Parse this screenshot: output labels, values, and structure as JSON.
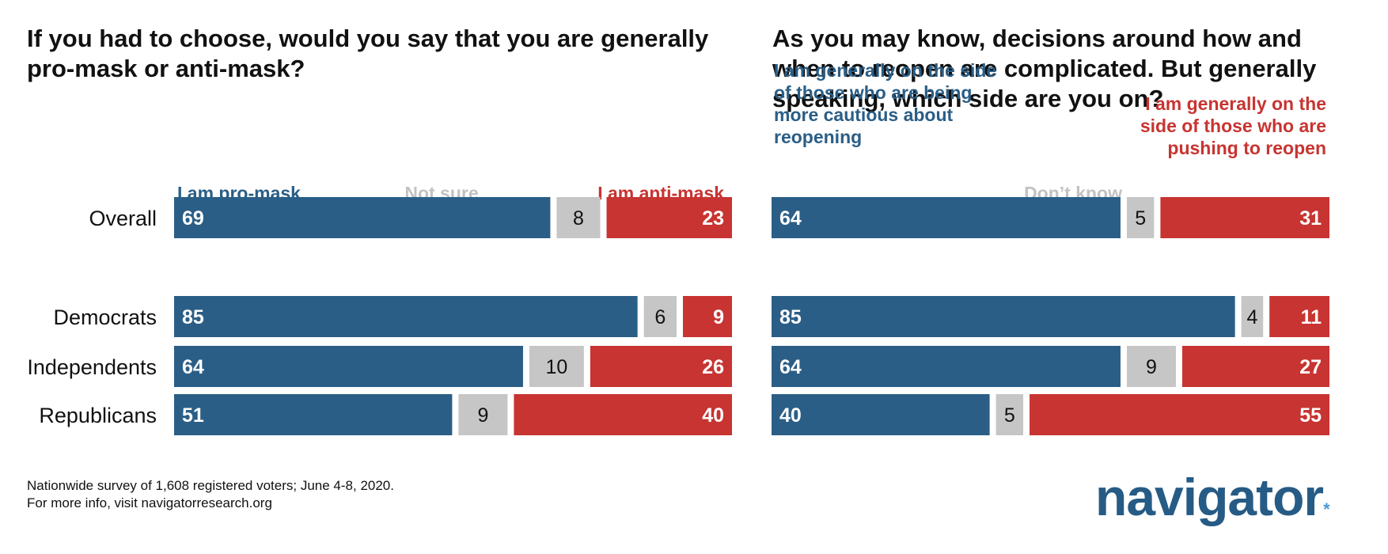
{
  "chart_data": [
    {
      "type": "bar",
      "orientation": "horizontal-stacked",
      "title": "If you had to choose, would you say that you are generally pro-mask or anti-mask?",
      "categories": [
        "Overall",
        "Democrats",
        "Independents",
        "Republicans"
      ],
      "series": [
        {
          "name": "I am pro-mask",
          "values": [
            69,
            85,
            64,
            51
          ],
          "color": "#2a5e86"
        },
        {
          "name": "Not sure",
          "values": [
            8,
            6,
            10,
            9
          ],
          "color": "#c6c6c6"
        },
        {
          "name": "I am anti-mask",
          "values": [
            23,
            9,
            26,
            40
          ],
          "color": "#c73431"
        }
      ],
      "legend_placement": "top"
    },
    {
      "type": "bar",
      "orientation": "horizontal-stacked",
      "title": "As you may know, decisions around how and when to reopen are complicated. But generally speaking, which side are you on?",
      "categories": [
        "Overall",
        "Democrats",
        "Independents",
        "Republicans"
      ],
      "series": [
        {
          "name": "I am generally on the side of those who are being more cautious about reopening",
          "values": [
            64,
            85,
            64,
            40
          ],
          "color": "#2a5e86"
        },
        {
          "name": "Don’t know",
          "values": [
            5,
            4,
            9,
            5
          ],
          "color": "#c6c6c6"
        },
        {
          "name": "I am generally on the side of those who are pushing to reopen",
          "values": [
            31,
            11,
            27,
            55
          ],
          "color": "#c73431"
        }
      ],
      "legend_placement": "top"
    }
  ],
  "legend_lines": {
    "left": [
      [
        "I am pro-mask"
      ],
      [
        "Not sure"
      ],
      [
        "I am anti-mask"
      ]
    ],
    "right": [
      [
        "I am generally on the side",
        "of those who are being",
        "more cautious about",
        "reopening"
      ],
      [
        "Don’t know"
      ],
      [
        "I am generally on the",
        "side of those who are",
        "pushing to reopen"
      ]
    ]
  },
  "footnote": [
    "Nationwide survey of 1,608 registered voters; June 4-8, 2020.",
    "For more info, visit navigatorresearch.org"
  ],
  "logo": {
    "text": "navigator",
    "mark": "*"
  }
}
